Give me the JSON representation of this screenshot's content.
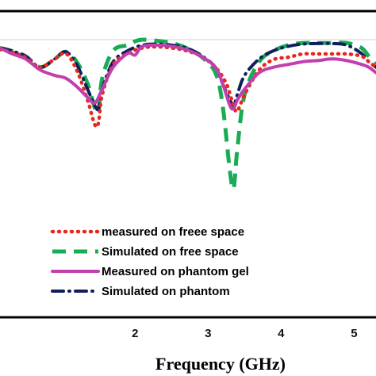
{
  "chart_data": {
    "type": "line",
    "title": "",
    "xlabel": "Frequency (GHz)",
    "ylabel": "",
    "xlim": [
      0.15,
      5.3
    ],
    "ylim": [
      -32,
      0
    ],
    "x_ticks": [
      {
        "value": 2,
        "label": "2"
      },
      {
        "value": 3,
        "label": "3"
      },
      {
        "value": 4,
        "label": "4"
      },
      {
        "value": 5,
        "label": "5"
      }
    ],
    "grid": false,
    "legend_position": "bottom-center",
    "series": [
      {
        "name": "measured on freee space",
        "color": "#e8261c",
        "style": "dotted",
        "x": [
          0.15,
          0.3,
          0.5,
          0.7,
          0.9,
          1.05,
          1.2,
          1.35,
          1.45,
          1.5,
          1.55,
          1.7,
          1.9,
          2.1,
          2.3,
          2.5,
          2.7,
          2.9,
          3.1,
          3.25,
          3.35,
          3.4,
          3.5,
          3.7,
          3.9,
          4.1,
          4.3,
          4.5,
          4.7,
          4.9,
          5.1,
          5.2,
          5.3
        ],
        "y": [
          -1.8,
          -2.2,
          -3.2,
          -5.0,
          -3.5,
          -2.5,
          -5.5,
          -11.0,
          -15.5,
          -15.0,
          -10.0,
          -4.5,
          -2.5,
          -1.5,
          -1.3,
          -1.5,
          -2.0,
          -3.0,
          -5.0,
          -8.0,
          -12.0,
          -13.0,
          -10.0,
          -5.5,
          -3.6,
          -3.2,
          -2.6,
          -2.6,
          -2.6,
          -2.6,
          -3.0,
          -4.0,
          -5.0
        ]
      },
      {
        "name": "Simulated on free space",
        "color": "#1aab55",
        "style": "dashed",
        "x": [
          0.15,
          0.3,
          0.5,
          0.7,
          0.9,
          1.05,
          1.2,
          1.35,
          1.45,
          1.5,
          1.55,
          1.7,
          1.9,
          2.0,
          2.1,
          2.3,
          2.5,
          2.7,
          2.9,
          3.1,
          3.2,
          3.3,
          3.35,
          3.4,
          3.5,
          3.7,
          3.9,
          4.1,
          4.3,
          4.5,
          4.7,
          4.9,
          5.1,
          5.2,
          5.3
        ],
        "y": [
          -1.5,
          -2.0,
          -3.0,
          -5.0,
          -3.5,
          -2.2,
          -4.0,
          -8.0,
          -12.5,
          -13.0,
          -7.0,
          -2.0,
          -1.0,
          -0.3,
          0.0,
          -0.2,
          -0.6,
          -1.5,
          -3.0,
          -6.0,
          -12.0,
          -24.0,
          -27.0,
          -20.0,
          -10.0,
          -4.0,
          -2.0,
          -1.0,
          -0.6,
          -0.6,
          -0.6,
          -0.6,
          -1.5,
          -3.0,
          -4.5
        ]
      },
      {
        "name": "Measured on phantom gel",
        "color": "#c13fae",
        "style": "solid",
        "x": [
          0.15,
          0.3,
          0.5,
          0.7,
          0.9,
          1.05,
          1.2,
          1.35,
          1.45,
          1.55,
          1.7,
          1.9,
          2.0,
          2.1,
          2.3,
          2.5,
          2.7,
          2.9,
          3.1,
          3.2,
          3.3,
          3.35,
          3.4,
          3.5,
          3.7,
          3.9,
          4.1,
          4.3,
          4.5,
          4.7,
          4.9,
          5.1,
          5.2,
          5.3
        ],
        "y": [
          -1.5,
          -2.5,
          -3.5,
          -5.5,
          -6.5,
          -7.0,
          -8.5,
          -10.5,
          -11.5,
          -9.0,
          -5.0,
          -2.5,
          -2.8,
          -1.2,
          -1.0,
          -1.2,
          -1.8,
          -3.0,
          -5.0,
          -8.0,
          -12.0,
          -12.5,
          -11.0,
          -9.0,
          -6.0,
          -5.0,
          -4.5,
          -4.0,
          -3.8,
          -3.5,
          -3.8,
          -4.5,
          -5.0,
          -6.0
        ]
      },
      {
        "name": "Simulated on phantom",
        "color": "#0f1f5c",
        "style": "dash-dot",
        "x": [
          0.15,
          0.3,
          0.5,
          0.7,
          0.9,
          1.05,
          1.2,
          1.35,
          1.45,
          1.5,
          1.55,
          1.7,
          1.9,
          2.1,
          2.3,
          2.5,
          2.7,
          2.9,
          3.1,
          3.2,
          3.3,
          3.35,
          3.4,
          3.5,
          3.7,
          3.9,
          4.1,
          4.3,
          4.5,
          4.7,
          4.9,
          5.1,
          5.2,
          5.3
        ],
        "y": [
          -1.5,
          -2.0,
          -3.0,
          -5.0,
          -3.5,
          -2.2,
          -4.5,
          -9.0,
          -12.0,
          -12.5,
          -9.0,
          -4.0,
          -2.0,
          -1.0,
          -0.8,
          -1.0,
          -1.5,
          -2.8,
          -5.0,
          -8.0,
          -11.0,
          -12.0,
          -10.0,
          -6.5,
          -3.5,
          -2.0,
          -1.2,
          -0.8,
          -0.7,
          -0.7,
          -1.0,
          -2.5,
          -4.0,
          -5.0
        ]
      }
    ]
  }
}
